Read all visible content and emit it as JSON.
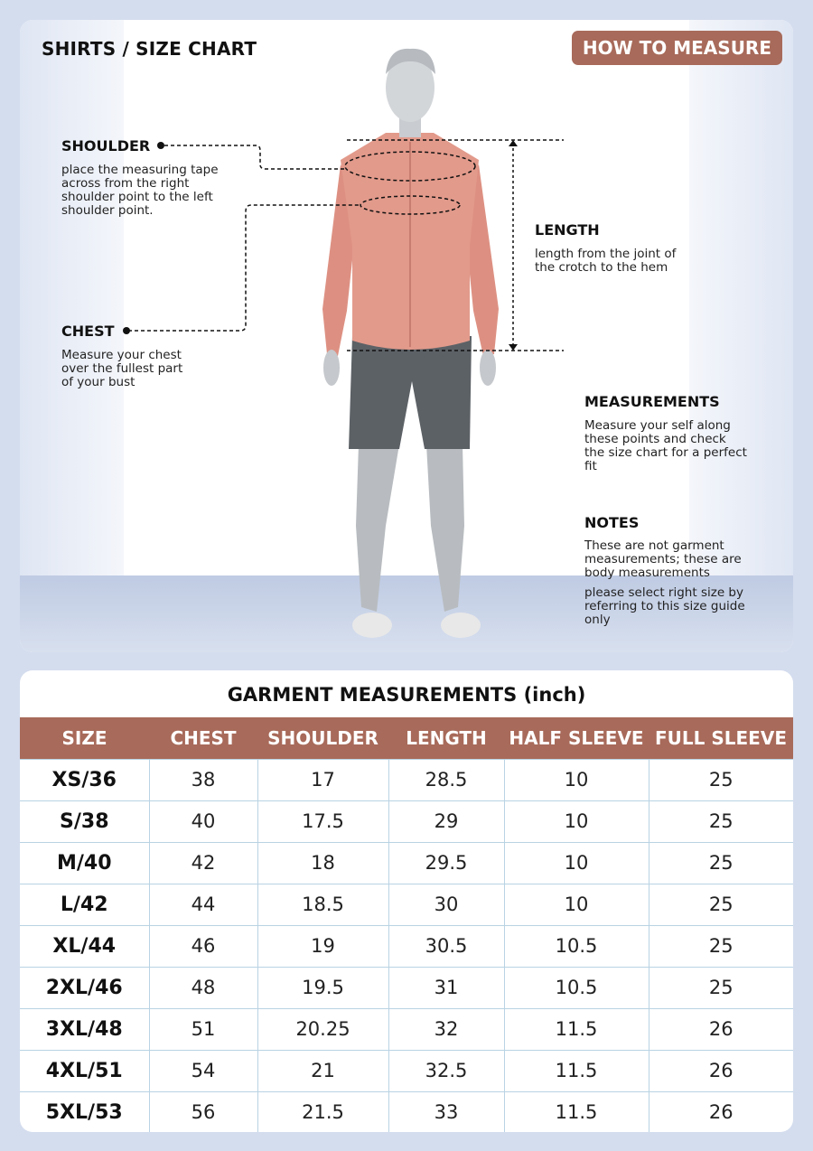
{
  "header": {
    "title": "SHIRTS / SIZE CHART",
    "how_to_measure": "HOW TO MEASURE"
  },
  "guide": {
    "shoulder": {
      "label": "SHOULDER",
      "text": "place the measuring tape across from the right shoulder point to the left shoulder point."
    },
    "chest": {
      "label": "CHEST",
      "text": "Measure your chest over the fullest part of your bust"
    },
    "length": {
      "label": "LENGTH",
      "text": "length from the joint of the crotch to the hem"
    },
    "measurements": {
      "label": "MEASUREMENTS",
      "text": "Measure your self along these points and check the size chart for a perfect fit"
    },
    "notes": {
      "label": "NOTES",
      "text1": "These are not garment measurements; these are body measurements",
      "text2": "please select right size by referring to this size guide only"
    }
  },
  "colors": {
    "accent": "#a86a5a",
    "background": "#d4ddee",
    "grid": "#b9d3e3"
  },
  "table": {
    "title": "GARMENT MEASUREMENTS (inch)",
    "columns": [
      "SIZE",
      "CHEST",
      "SHOULDER",
      "LENGTH",
      "HALF SLEEVE",
      "FULL SLEEVE"
    ],
    "rows": [
      [
        "XS/36",
        "38",
        "17",
        "28.5",
        "10",
        "25"
      ],
      [
        "S/38",
        "40",
        "17.5",
        "29",
        "10",
        "25"
      ],
      [
        "M/40",
        "42",
        "18",
        "29.5",
        "10",
        "25"
      ],
      [
        "L/42",
        "44",
        "18.5",
        "30",
        "10",
        "25"
      ],
      [
        "XL/44",
        "46",
        "19",
        "30.5",
        "10.5",
        "25"
      ],
      [
        "2XL/46",
        "48",
        "19.5",
        "31",
        "10.5",
        "25"
      ],
      [
        "3XL/48",
        "51",
        "20.25",
        "32",
        "11.5",
        "26"
      ],
      [
        "4XL/51",
        "54",
        "21",
        "32.5",
        "11.5",
        "26"
      ],
      [
        "5XL/53",
        "56",
        "21.5",
        "33",
        "11.5",
        "26"
      ]
    ]
  }
}
